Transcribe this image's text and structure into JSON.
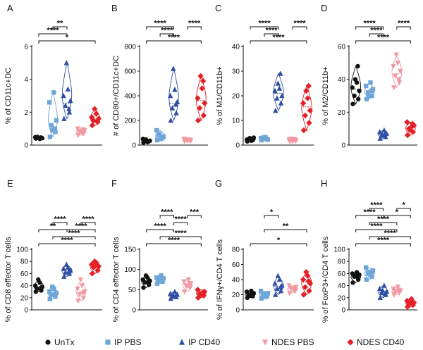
{
  "groups": [
    {
      "name": "UnTx",
      "color": "#111111",
      "shape": "circle"
    },
    {
      "name": "IP PBS",
      "color": "#6fa6d8",
      "shape": "square"
    },
    {
      "name": "IP CD40",
      "color": "#2f4fa3",
      "shape": "triangle"
    },
    {
      "name": "NDES PBS",
      "color": "#f19aa3",
      "shape": "tri-down"
    },
    {
      "name": "NDES CD40",
      "color": "#e32028",
      "shape": "diamond"
    }
  ],
  "chart_data": [
    {
      "type": "scatter",
      "panel": "A",
      "ylabel": "% of CD11c+DC",
      "ylim": [
        0,
        6
      ],
      "yticks": [
        "0",
        "2",
        "4",
        "6"
      ],
      "series": [
        {
          "name": "UnTx",
          "values": [
            0.4,
            0.45,
            0.5,
            0.42,
            0.48,
            0.38,
            0.43,
            0.46
          ]
        },
        {
          "name": "IP PBS",
          "values": [
            0.5,
            0.8,
            1.2,
            1.5,
            2.6,
            3.2,
            0.9,
            1.0
          ]
        },
        {
          "name": "IP CD40",
          "values": [
            1.6,
            2.0,
            2.4,
            2.7,
            3.0,
            3.4,
            5.0,
            2.2
          ]
        },
        {
          "name": "NDES PBS",
          "values": [
            0.6,
            0.7,
            0.8,
            0.9,
            1.0,
            0.75,
            0.85,
            0.95
          ]
        },
        {
          "name": "NDES CD40",
          "values": [
            1.2,
            1.4,
            1.5,
            1.6,
            1.7,
            1.9,
            2.2,
            1.45
          ]
        }
      ],
      "brackets": [
        {
          "from": 1,
          "to": 5,
          "level": 1,
          "label": "*"
        },
        {
          "from": 1,
          "to": 3,
          "level": 2,
          "label": "****"
        },
        {
          "from": 2,
          "to": 3,
          "level": 3,
          "label": "**"
        }
      ]
    },
    {
      "type": "scatter",
      "panel": "B",
      "ylabel": "# of CD80+/CD11c+DC",
      "ylim": [
        0,
        800
      ],
      "yticks": [
        "0",
        "200",
        "400",
        "600",
        "800"
      ],
      "series": [
        {
          "name": "UnTx",
          "values": [
            20,
            30,
            40,
            35,
            50,
            25,
            45,
            30
          ]
        },
        {
          "name": "IP PBS",
          "values": [
            40,
            60,
            80,
            70,
            120,
            50,
            90,
            65
          ]
        },
        {
          "name": "IP CD40",
          "values": [
            200,
            260,
            300,
            350,
            400,
            450,
            620,
            330
          ]
        },
        {
          "name": "NDES PBS",
          "values": [
            30,
            40,
            45,
            35,
            50,
            42,
            38,
            44
          ]
        },
        {
          "name": "NDES CD40",
          "values": [
            200,
            240,
            300,
            340,
            380,
            460,
            560,
            520
          ]
        }
      ],
      "brackets": [
        {
          "from": 1,
          "to": 5,
          "level": 1,
          "label": "****"
        },
        {
          "from": 2,
          "to": 3,
          "level": 2,
          "label": "****"
        },
        {
          "from": 1,
          "to": 3,
          "level": 3,
          "label": "****"
        },
        {
          "from": 4,
          "to": 5,
          "level": 3,
          "label": "****"
        }
      ]
    },
    {
      "type": "scatter",
      "panel": "C",
      "ylabel": "% of M1/CD11b+",
      "ylim": [
        0,
        40
      ],
      "yticks": [
        "0",
        "10",
        "20",
        "30",
        "40"
      ],
      "series": [
        {
          "name": "UnTx",
          "values": [
            1.5,
            2.0,
            2.5,
            3.0,
            2.2,
            1.8,
            2.8,
            2.4
          ]
        },
        {
          "name": "IP PBS",
          "values": [
            2.0,
            2.5,
            3.0,
            2.2,
            2.8,
            3.2,
            2.6,
            2.4
          ]
        },
        {
          "name": "IP CD40",
          "values": [
            14,
            17,
            19,
            20,
            22,
            23,
            25,
            29
          ]
        },
        {
          "name": "NDES PBS",
          "values": [
            1.5,
            2.0,
            2.5,
            1.8,
            2.2,
            2.0,
            1.6,
            2.4
          ]
        },
        {
          "name": "NDES CD40",
          "values": [
            6,
            9,
            12,
            14,
            17,
            19,
            22,
            24
          ]
        }
      ],
      "brackets": [
        {
          "from": 1,
          "to": 5,
          "level": 1,
          "label": "****"
        },
        {
          "from": 2,
          "to": 3,
          "level": 2,
          "label": "****"
        },
        {
          "from": 1,
          "to": 3,
          "level": 3,
          "label": "****"
        },
        {
          "from": 4,
          "to": 5,
          "level": 3,
          "label": "****"
        }
      ]
    },
    {
      "type": "scatter",
      "panel": "D",
      "ylabel": "% of M2/CD11b+",
      "ylim": [
        0,
        60
      ],
      "yticks": [
        "0",
        "20",
        "40",
        "60"
      ],
      "series": [
        {
          "name": "UnTx",
          "values": [
            25,
            28,
            30,
            33,
            35,
            38,
            40,
            48
          ]
        },
        {
          "name": "IP PBS",
          "values": [
            28,
            30,
            32,
            34,
            36,
            38,
            30,
            33
          ]
        },
        {
          "name": "IP CD40",
          "values": [
            4,
            5,
            6,
            7,
            8,
            9,
            6,
            7
          ]
        },
        {
          "name": "NDES PBS",
          "values": [
            35,
            38,
            42,
            45,
            48,
            50,
            55,
            40
          ]
        },
        {
          "name": "NDES CD40",
          "values": [
            6,
            8,
            10,
            12,
            14,
            11,
            9,
            13
          ]
        }
      ],
      "brackets": [
        {
          "from": 1,
          "to": 5,
          "level": 1,
          "label": "****"
        },
        {
          "from": 2,
          "to": 3,
          "level": 2,
          "label": "****"
        },
        {
          "from": 1,
          "to": 3,
          "level": 3,
          "label": "****"
        },
        {
          "from": 4,
          "to": 5,
          "level": 3,
          "label": "****"
        }
      ]
    },
    {
      "type": "scatter",
      "panel": "E",
      "ylabel": "% of CD8 effector T cells",
      "ylim": [
        0,
        100
      ],
      "yticks": [
        "0",
        "20",
        "40",
        "60",
        "80",
        "100"
      ],
      "series": [
        {
          "name": "UnTx",
          "values": [
            30,
            32,
            35,
            38,
            40,
            45,
            50,
            36
          ]
        },
        {
          "name": "IP PBS",
          "values": [
            18,
            22,
            25,
            28,
            30,
            35,
            38,
            26
          ]
        },
        {
          "name": "IP CD40",
          "values": [
            55,
            60,
            62,
            65,
            68,
            70,
            75,
            64
          ]
        },
        {
          "name": "NDES PBS",
          "values": [
            15,
            20,
            25,
            30,
            35,
            40,
            50,
            28
          ]
        },
        {
          "name": "NDES CD40",
          "values": [
            60,
            65,
            70,
            72,
            75,
            78,
            80,
            74
          ]
        }
      ],
      "brackets": [
        {
          "from": 1,
          "to": 5,
          "level": 1,
          "label": "****"
        },
        {
          "from": 2,
          "to": 5,
          "level": 2,
          "label": "****"
        },
        {
          "from": 1,
          "to": 3,
          "level": 3,
          "label": "**"
        },
        {
          "from": 3,
          "to": 5,
          "level": 3,
          "label": "****"
        },
        {
          "from": 2,
          "to": 3,
          "level": 4,
          "label": "****"
        },
        {
          "from": 4,
          "to": 5,
          "level": 4,
          "label": "****"
        }
      ]
    },
    {
      "type": "scatter",
      "panel": "F",
      "ylabel": "% of CD4 effector T cells",
      "ylim": [
        0,
        150
      ],
      "yticks": [
        "0",
        "50",
        "100",
        "150"
      ],
      "series": [
        {
          "name": "UnTx",
          "values": [
            55,
            62,
            68,
            72,
            75,
            80,
            85,
            70
          ]
        },
        {
          "name": "IP PBS",
          "values": [
            65,
            70,
            75,
            78,
            80,
            85,
            72,
            77
          ]
        },
        {
          "name": "IP CD40",
          "values": [
            28,
            32,
            35,
            38,
            40,
            45,
            36,
            34
          ]
        },
        {
          "name": "NDES PBS",
          "values": [
            45,
            55,
            60,
            65,
            70,
            75,
            58,
            66
          ]
        },
        {
          "name": "NDES CD40",
          "values": [
            30,
            35,
            40,
            45,
            50,
            42,
            38,
            44
          ]
        }
      ],
      "brackets": [
        {
          "from": 1,
          "to": 5,
          "level": 1,
          "label": "****"
        },
        {
          "from": 2,
          "to": 5,
          "level": 2,
          "label": "****"
        },
        {
          "from": 1,
          "to": 3,
          "level": 3,
          "label": "****"
        },
        {
          "from": 3,
          "to": 4,
          "level": 4,
          "label": "****"
        },
        {
          "from": 2,
          "to": 3,
          "level": 5,
          "label": "****"
        },
        {
          "from": 4,
          "to": 5,
          "level": 5,
          "label": "***"
        }
      ]
    },
    {
      "type": "scatter",
      "panel": "G",
      "ylabel": "% of IFNγ+/CD4 T cells",
      "ylim": [
        0,
        80
      ],
      "yticks": [
        "0",
        "20",
        "40",
        "60",
        "80"
      ],
      "series": [
        {
          "name": "UnTx",
          "values": [
            16,
            18,
            20,
            22,
            24,
            25,
            19,
            21
          ]
        },
        {
          "name": "IP PBS",
          "values": [
            15,
            18,
            20,
            22,
            25,
            17,
            21,
            19
          ]
        },
        {
          "name": "IP CD40",
          "values": [
            20,
            25,
            28,
            32,
            35,
            40,
            45,
            30
          ]
        },
        {
          "name": "NDES PBS",
          "values": [
            22,
            25,
            28,
            30,
            32,
            27,
            29,
            26
          ]
        },
        {
          "name": "NDES CD40",
          "values": [
            20,
            25,
            30,
            35,
            40,
            45,
            50,
            38
          ]
        }
      ],
      "brackets": [
        {
          "from": 1,
          "to": 5,
          "level": 1,
          "label": "*"
        },
        {
          "from": 2,
          "to": 5,
          "level": 3,
          "label": "**"
        },
        {
          "from": 2,
          "to": 3,
          "level": 5,
          "label": "*"
        }
      ]
    },
    {
      "type": "scatter",
      "panel": "H",
      "ylabel": "% of FoxP3+/CD4 T cells",
      "ylim": [
        0,
        100
      ],
      "yticks": [
        "0",
        "20",
        "40",
        "60",
        "80",
        "100"
      ],
      "series": [
        {
          "name": "UnTx",
          "values": [
            45,
            50,
            55,
            58,
            60,
            62,
            56,
            53
          ]
        },
        {
          "name": "IP PBS",
          "values": [
            50,
            55,
            60,
            65,
            70,
            58,
            62,
            63
          ]
        },
        {
          "name": "IP CD40",
          "values": [
            20,
            25,
            28,
            30,
            35,
            40,
            32,
            27
          ]
        },
        {
          "name": "NDES PBS",
          "values": [
            25,
            28,
            30,
            32,
            35,
            38,
            31,
            33
          ]
        },
        {
          "name": "NDES CD40",
          "values": [
            5,
            8,
            10,
            12,
            15,
            18,
            11,
            9
          ]
        }
      ],
      "brackets": [
        {
          "from": 1,
          "to": 5,
          "level": 1,
          "label": "****"
        },
        {
          "from": 2,
          "to": 5,
          "level": 2,
          "label": "****"
        },
        {
          "from": 1,
          "to": 4,
          "level": 3,
          "label": "****"
        },
        {
          "from": 2,
          "to": 4,
          "level": 4,
          "label": "****"
        },
        {
          "from": 3,
          "to": 5,
          "level": 5,
          "label": "*"
        },
        {
          "from": 1,
          "to": 3,
          "level": 5,
          "label": "****"
        },
        {
          "from": 2,
          "to": 3,
          "level": 6,
          "label": "****"
        },
        {
          "from": 4,
          "to": 5,
          "level": 6,
          "label": "*"
        }
      ]
    }
  ]
}
